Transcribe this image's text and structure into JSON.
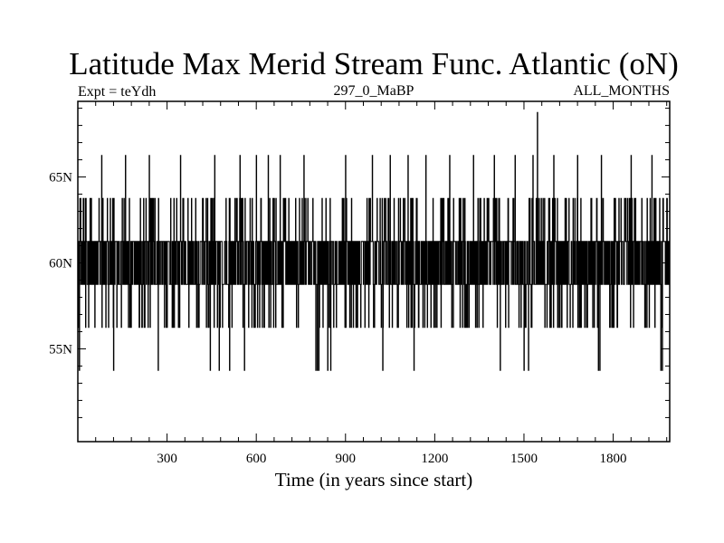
{
  "chart_data": {
    "type": "line",
    "title": "Latitude Max Merid Stream Func. Atlantic (oN)",
    "subtitle_left": "Expt = teYdh",
    "subtitle_center": "297_0_MaBP",
    "subtitle_right": "ALL_MONTHS",
    "xlabel": "Time (in years since start)",
    "ylabel": "",
    "xlim": [
      0,
      1990
    ],
    "ylim": [
      49.6,
      69.4
    ],
    "xticks": [
      300,
      600,
      900,
      1200,
      1500,
      1800
    ],
    "xtick_labels": [
      "300",
      "600",
      "900",
      "1200",
      "1500",
      "1800"
    ],
    "yticks": [
      55,
      60,
      65
    ],
    "ytick_labels": [
      "55N",
      "60N",
      "65N"
    ],
    "levels": [
      53.75,
      56.25,
      58.75,
      61.25,
      63.75,
      66.25,
      68.75
    ],
    "series": [
      {
        "name": "Latitude of max meridional stream function",
        "x_start": 0,
        "x_step": 1,
        "n_points": 1990,
        "dominant_values": [
          58.75,
          61.25
        ],
        "excursions_high": [
          [
            25,
            63.75
          ],
          [
            80,
            66.25
          ],
          [
            160,
            66.25
          ],
          [
            240,
            66.25
          ],
          [
            345,
            66.25
          ],
          [
            460,
            66.25
          ],
          [
            545,
            66.25
          ],
          [
            600,
            66.25
          ],
          [
            640,
            66.25
          ],
          [
            680,
            66.25
          ],
          [
            760,
            66.25
          ],
          [
            840,
            66.25
          ],
          [
            900,
            66.25
          ],
          [
            990,
            66.25
          ],
          [
            1050,
            66.25
          ],
          [
            1110,
            66.25
          ],
          [
            1170,
            66.25
          ],
          [
            1250,
            66.25
          ],
          [
            1330,
            66.25
          ],
          [
            1400,
            66.25
          ],
          [
            1470,
            66.25
          ],
          [
            1530,
            66.25
          ],
          [
            1545,
            68.75
          ],
          [
            1600,
            66.25
          ],
          [
            1680,
            66.25
          ],
          [
            1760,
            66.25
          ],
          [
            1860,
            66.25
          ],
          [
            1930,
            66.25
          ]
        ],
        "excursions_low": [
          [
            5,
            53.75
          ],
          [
            120,
            53.75
          ],
          [
            270,
            53.75
          ],
          [
            445,
            53.75
          ],
          [
            475,
            53.75
          ],
          [
            510,
            53.75
          ],
          [
            560,
            53.75
          ],
          [
            800,
            53.75
          ],
          [
            805,
            53.75
          ],
          [
            810,
            53.75
          ],
          [
            840,
            53.75
          ],
          [
            850,
            53.75
          ],
          [
            1025,
            53.75
          ],
          [
            1130,
            53.75
          ],
          [
            1420,
            53.75
          ],
          [
            1500,
            53.75
          ],
          [
            1515,
            53.75
          ],
          [
            1750,
            53.75
          ],
          [
            1755,
            53.75
          ],
          [
            1960,
            53.75
          ],
          [
            1965,
            53.75
          ]
        ]
      }
    ]
  }
}
